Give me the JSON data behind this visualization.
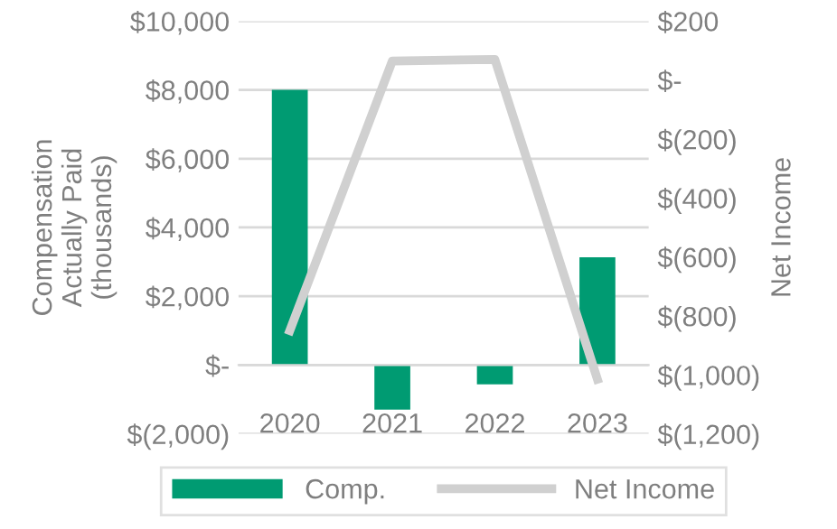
{
  "chart_data": {
    "type": "bar",
    "categories": [
      "2020",
      "2021",
      "2022",
      "2023"
    ],
    "ylabel": "Compensation\nActually Paid\n(thousands)",
    "y2label": "Net Income",
    "series": [
      {
        "name": "Comp.",
        "color": "#009b72",
        "values": [
          8000,
          -1300,
          -560,
          3130
        ]
      },
      {
        "name": "Net Income",
        "type": "line",
        "axis": "y2",
        "color": "#d0d0d0",
        "values": [
          -850,
          65,
          70,
          -1015
        ]
      }
    ],
    "ylim": [
      -2000,
      10000
    ],
    "yticks": [
      {
        "value": -2000,
        "label": "$(2,000)"
      },
      {
        "value": 0,
        "label": "$-"
      },
      {
        "value": 2000,
        "label": "$2,000"
      },
      {
        "value": 4000,
        "label": "$4,000"
      },
      {
        "value": 6000,
        "label": "$6,000"
      },
      {
        "value": 8000,
        "label": "$8,000"
      },
      {
        "value": 10000,
        "label": "$10,000"
      }
    ],
    "y2lim": [
      -1200,
      200
    ],
    "y2ticks": [
      {
        "value": -1200,
        "label": "$(1,200)"
      },
      {
        "value": -1000,
        "label": "$(1,000)"
      },
      {
        "value": -800,
        "label": "$(800)"
      },
      {
        "value": -600,
        "label": "$(600)"
      },
      {
        "value": -400,
        "label": "$(400)"
      },
      {
        "value": -200,
        "label": "$(200)"
      },
      {
        "value": 0,
        "label": "$-"
      },
      {
        "value": 200,
        "label": "$200"
      }
    ],
    "grid": "y",
    "legend": "bottom"
  }
}
